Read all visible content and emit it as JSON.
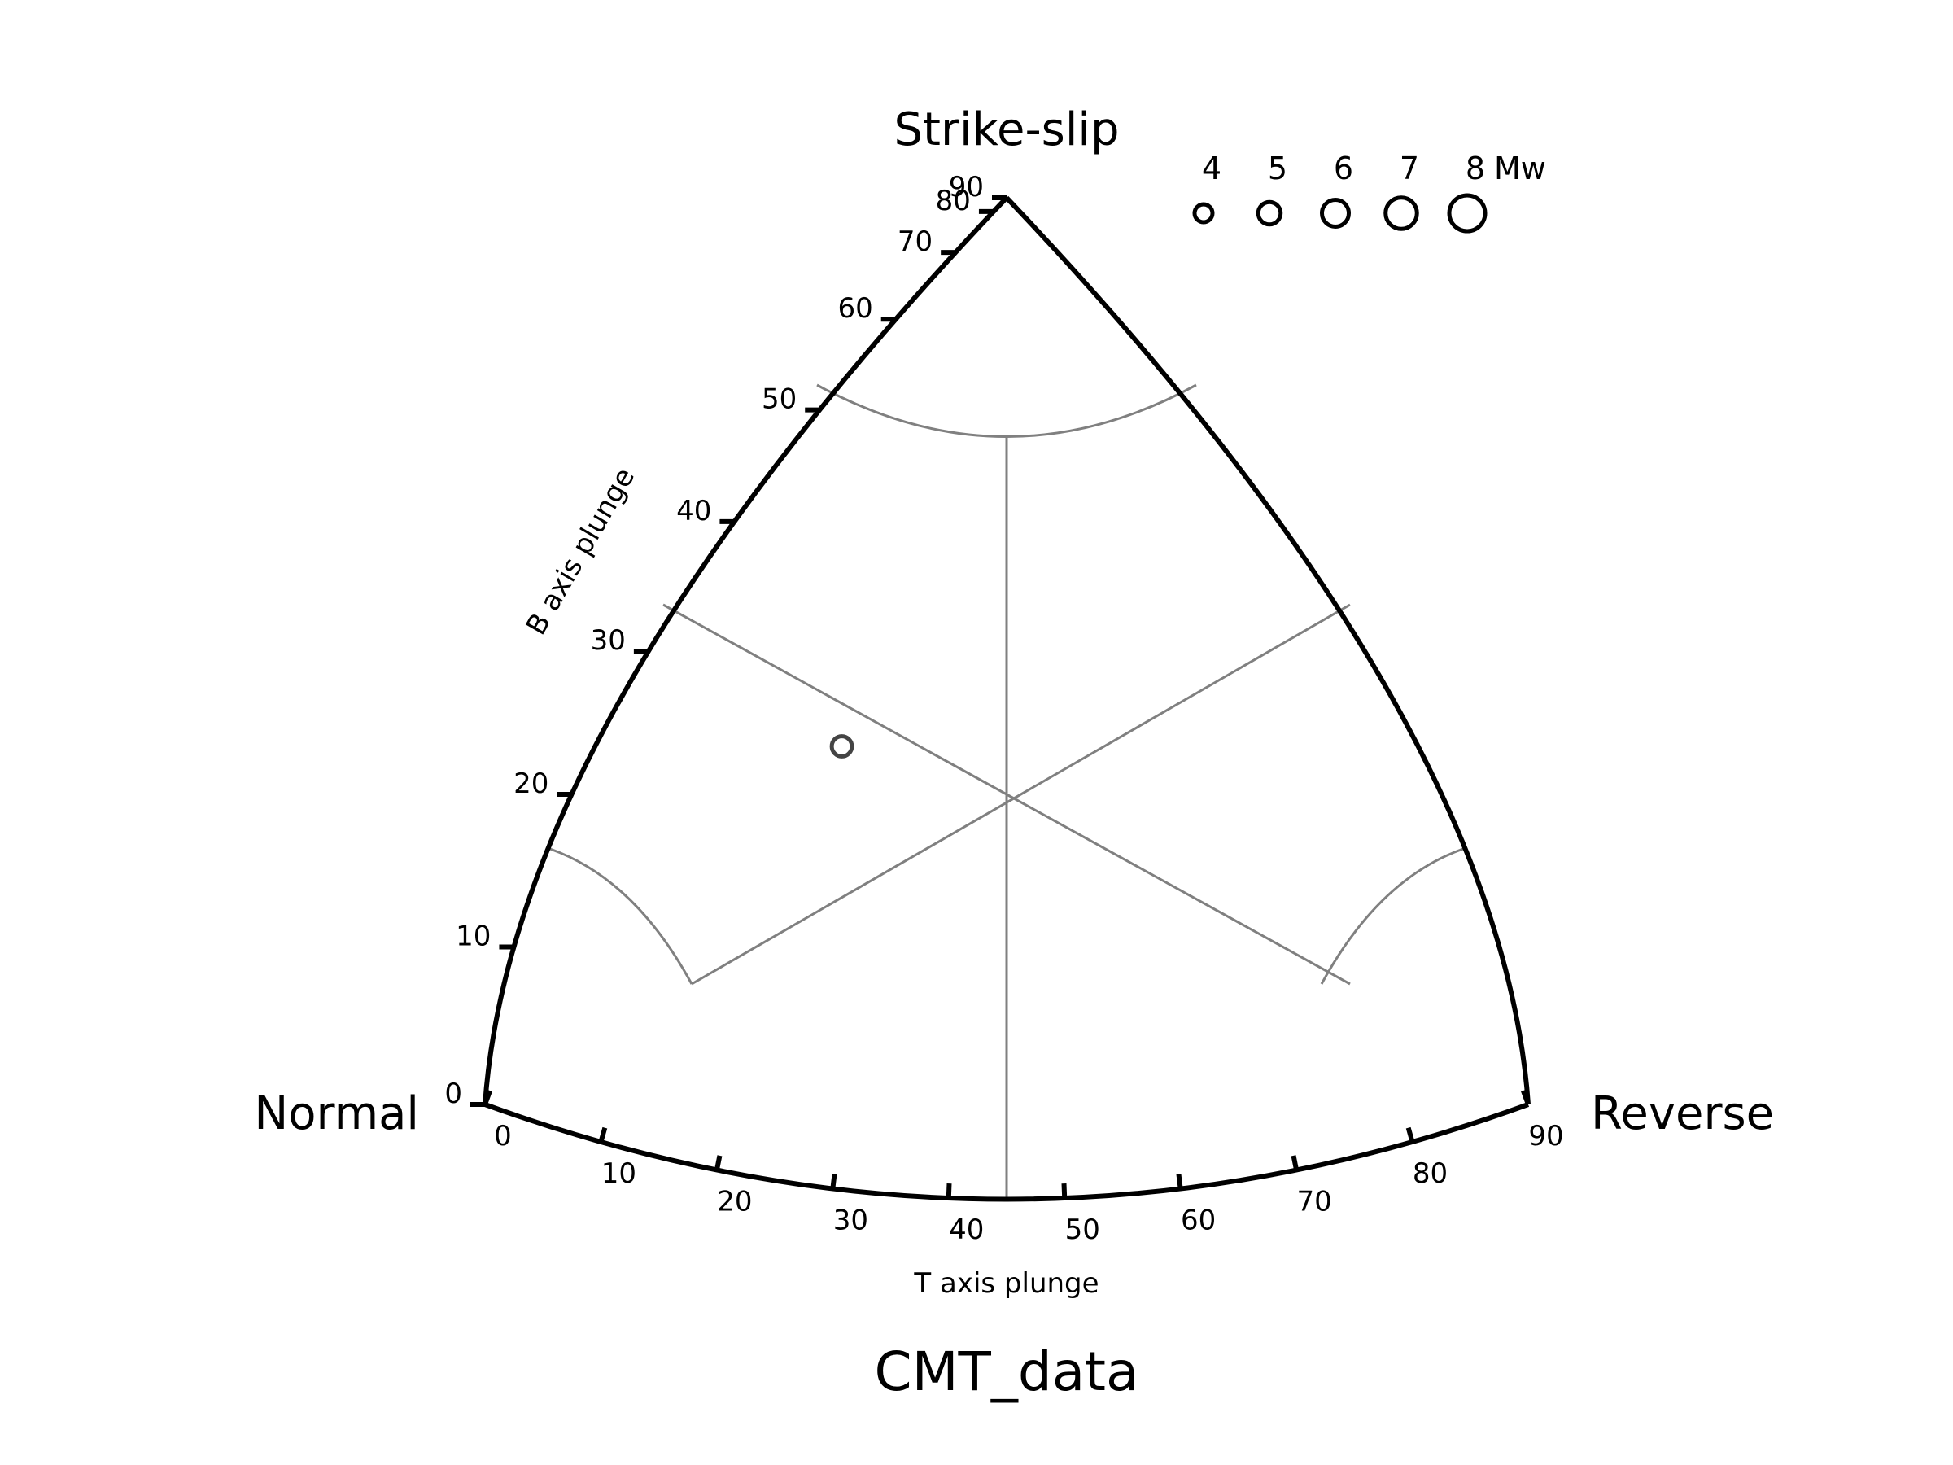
{
  "chart_data": {
    "type": "scatter",
    "subtype": "ternary",
    "title": "CMT_data",
    "corner_labels": {
      "top": "Strike-slip",
      "left": "Normal",
      "right": "Reverse"
    },
    "axes": {
      "b_axis": {
        "label": "B axis plunge",
        "ticks": [
          "0",
          "10",
          "20",
          "30",
          "40",
          "50",
          "60",
          "70",
          "80",
          "90"
        ]
      },
      "t_axis": {
        "label": "T axis plunge",
        "ticks": [
          "0",
          "10",
          "20",
          "30",
          "40",
          "50",
          "60",
          "70",
          "80",
          "90"
        ]
      }
    },
    "grid": true,
    "legend": {
      "placement": "top-right",
      "unit": "Mw",
      "entries": [
        {
          "label": "4",
          "mw": 4
        },
        {
          "label": "5",
          "mw": 5
        },
        {
          "label": "6",
          "mw": 6
        },
        {
          "label": "7",
          "mw": 7
        },
        {
          "label": "8",
          "mw": 8
        }
      ]
    },
    "points": [
      {
        "t_plunge": 20,
        "b_plunge": 35,
        "mw": 4.5
      }
    ],
    "colors": {
      "frame": "#000000",
      "grid": "#808080",
      "point": "#444444"
    }
  }
}
